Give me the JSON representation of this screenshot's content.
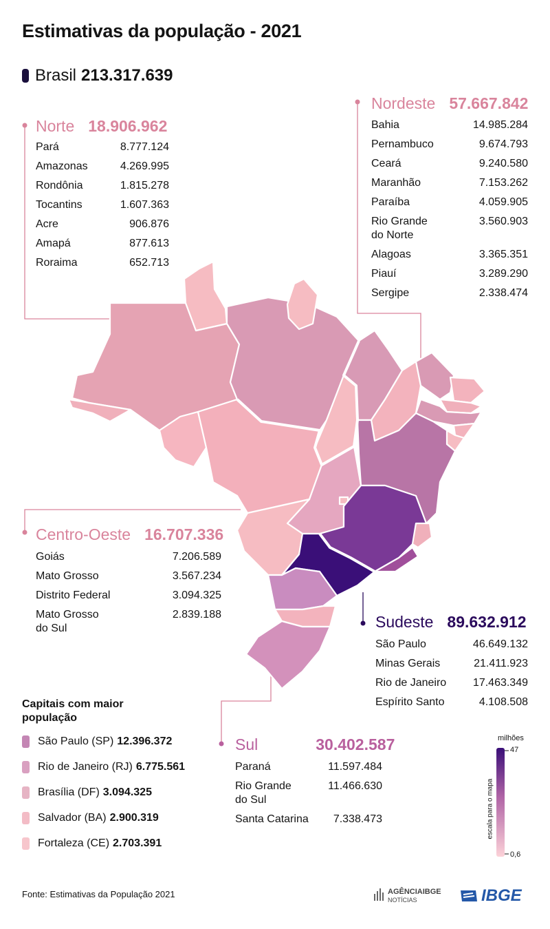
{
  "title": "Estimativas da população - 2021",
  "brasil": {
    "label": "Brasil",
    "total": "213.317.639"
  },
  "regions": {
    "norte": {
      "name": "Norte",
      "total": "18.906.962",
      "color": "#d9849c",
      "states": [
        {
          "name": "Pará",
          "value": "8.777.124"
        },
        {
          "name": "Amazonas",
          "value": "4.269.995"
        },
        {
          "name": "Rondônia",
          "value": "1.815.278"
        },
        {
          "name": "Tocantins",
          "value": "1.607.363"
        },
        {
          "name": "Acre",
          "value": "906.876"
        },
        {
          "name": "Amapá",
          "value": "877.613"
        },
        {
          "name": "Roraima",
          "value": "652.713"
        }
      ]
    },
    "nordeste": {
      "name": "Nordeste",
      "total": "57.667.842",
      "color": "#d9849c",
      "states": [
        {
          "name": "Bahia",
          "value": "14.985.284"
        },
        {
          "name": "Pernambuco",
          "value": "9.674.793"
        },
        {
          "name": "Ceará",
          "value": "9.240.580"
        },
        {
          "name": "Maranhão",
          "value": "7.153.262"
        },
        {
          "name": "Paraíba",
          "value": "4.059.905"
        },
        {
          "name": "Rio Grande\ndo Norte",
          "value": "3.560.903"
        },
        {
          "name": "Alagoas",
          "value": "3.365.351"
        },
        {
          "name": "Piauí",
          "value": "3.289.290"
        },
        {
          "name": "Sergipe",
          "value": "2.338.474"
        }
      ]
    },
    "centro_oeste": {
      "name": "Centro-Oeste",
      "total": "16.707.336",
      "color": "#d9849c",
      "states": [
        {
          "name": "Goiás",
          "value": "7.206.589"
        },
        {
          "name": "Mato Grosso",
          "value": "3.567.234"
        },
        {
          "name": "Distrito Federal",
          "value": "3.094.325"
        },
        {
          "name": "Mato Grosso\ndo Sul",
          "value": "2.839.188"
        }
      ]
    },
    "sudeste": {
      "name": "Sudeste",
      "total": "89.632.912",
      "color": "#2a0a5c",
      "states": [
        {
          "name": "São Paulo",
          "value": "46.649.132"
        },
        {
          "name": "Minas Gerais",
          "value": "21.411.923"
        },
        {
          "name": "Rio de Janeiro",
          "value": "17.463.349"
        },
        {
          "name": "Espírito Santo",
          "value": "4.108.508"
        }
      ]
    },
    "sul": {
      "name": "Sul",
      "total": "30.402.587",
      "color": "#b9609e",
      "states": [
        {
          "name": "Paraná",
          "value": "11.597.484"
        },
        {
          "name": "Rio Grande\ndo Sul",
          "value": "11.466.630"
        },
        {
          "name": "Santa Catarina",
          "value": "7.338.473"
        }
      ]
    }
  },
  "capitals": {
    "title": "Capitais com maior população",
    "items": [
      {
        "city": "São Paulo (SP)",
        "pop": "12.396.372",
        "color": "#c486b4"
      },
      {
        "city": "Rio de Janeiro (RJ)",
        "pop": "6.775.561",
        "color": "#d9a0c0"
      },
      {
        "city": "Brasília (DF)",
        "pop": "3.094.325",
        "color": "#e6b4c4"
      },
      {
        "city": "Salvador (BA)",
        "pop": "2.900.319",
        "color": "#f3bcc6"
      },
      {
        "city": "Fortaleza (CE)",
        "pop": "2.703.391",
        "color": "#f7c6cc"
      }
    ]
  },
  "scale": {
    "unit": "milhões",
    "max": "47",
    "min": "0,6",
    "caption": "escala para o mapa",
    "color_high": "#3a0f78",
    "color_low": "#fcd2d8"
  },
  "source": "Fonte: Estimativas da População 2021",
  "logos": {
    "agencia_line1": "AGÊNCIAIBGE",
    "agencia_line2": "NOTÍCIAS",
    "ibge": "IBGE"
  }
}
